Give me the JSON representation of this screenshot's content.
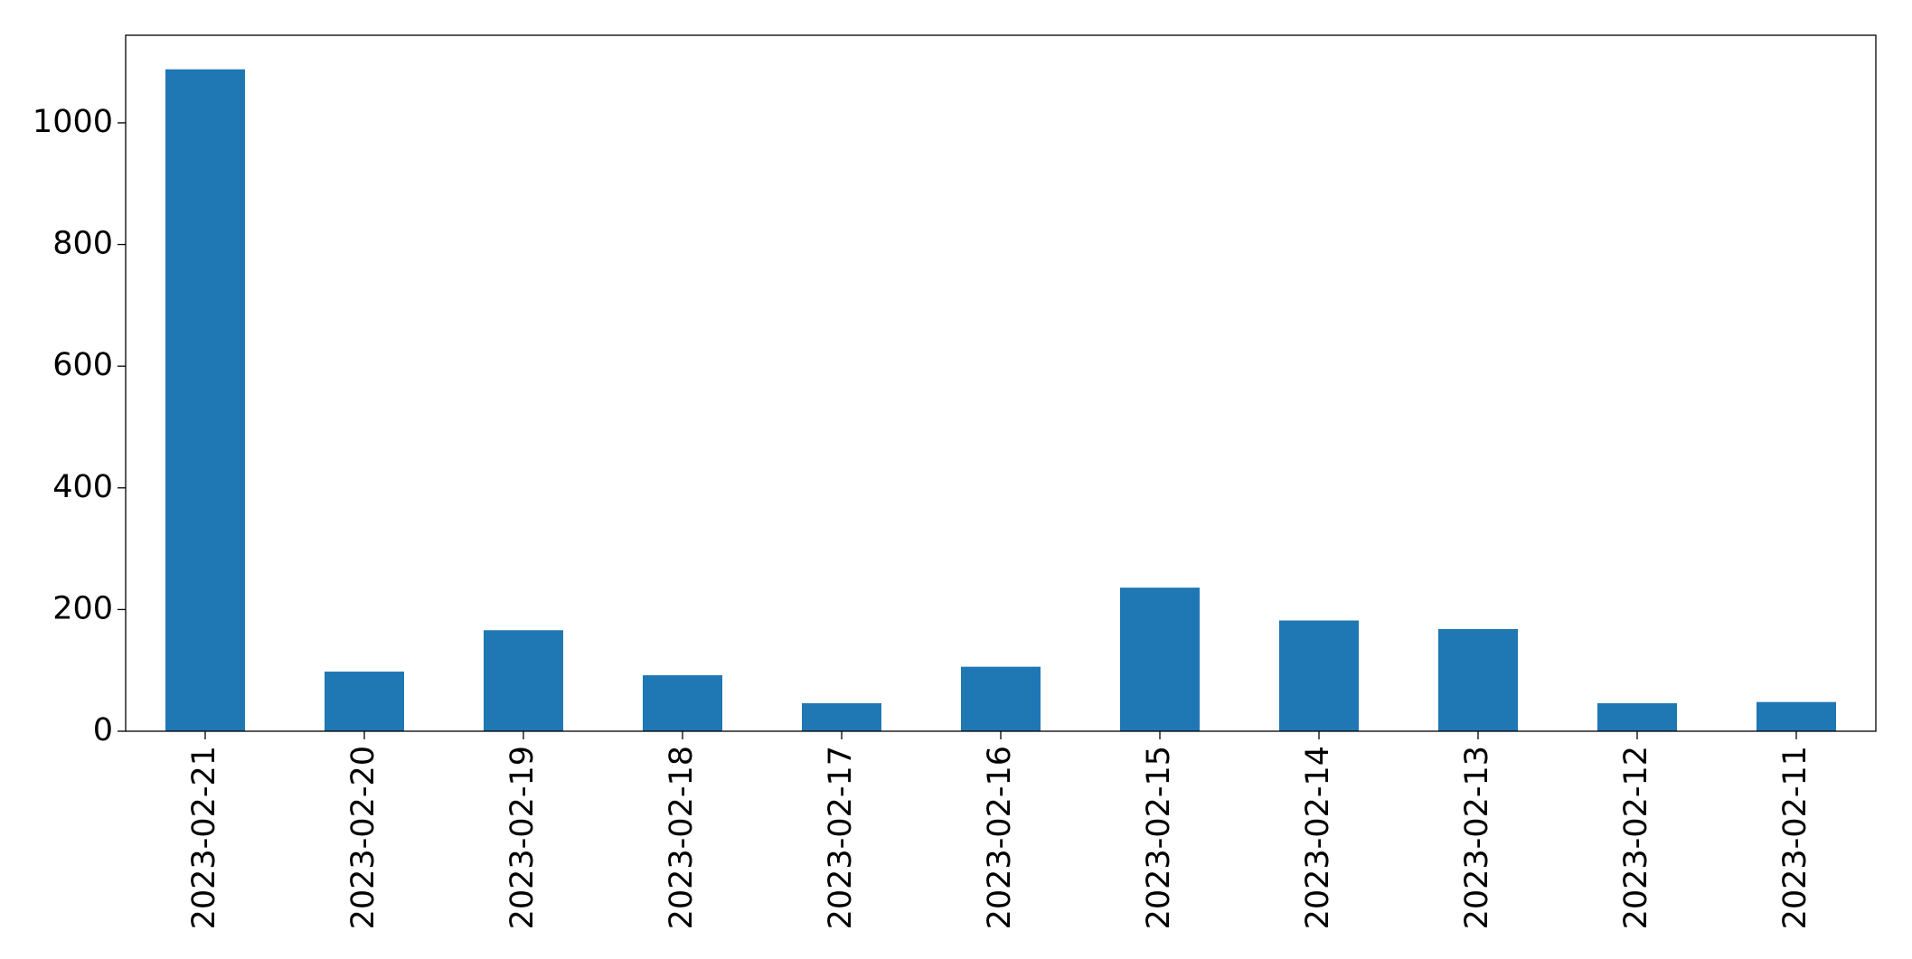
{
  "chart_data": {
    "type": "bar",
    "categories": [
      "2023-02-21",
      "2023-02-20",
      "2023-02-19",
      "2023-02-18",
      "2023-02-17",
      "2023-02-16",
      "2023-02-15",
      "2023-02-14",
      "2023-02-13",
      "2023-02-12",
      "2023-02-11"
    ],
    "values": [
      1088,
      98,
      166,
      92,
      46,
      106,
      236,
      182,
      168,
      46,
      48
    ],
    "color": "#1f77b4",
    "ylim": [
      0,
      1144
    ],
    "yticks": [
      0,
      200,
      400,
      600,
      800,
      1000
    ],
    "grid": false
  }
}
